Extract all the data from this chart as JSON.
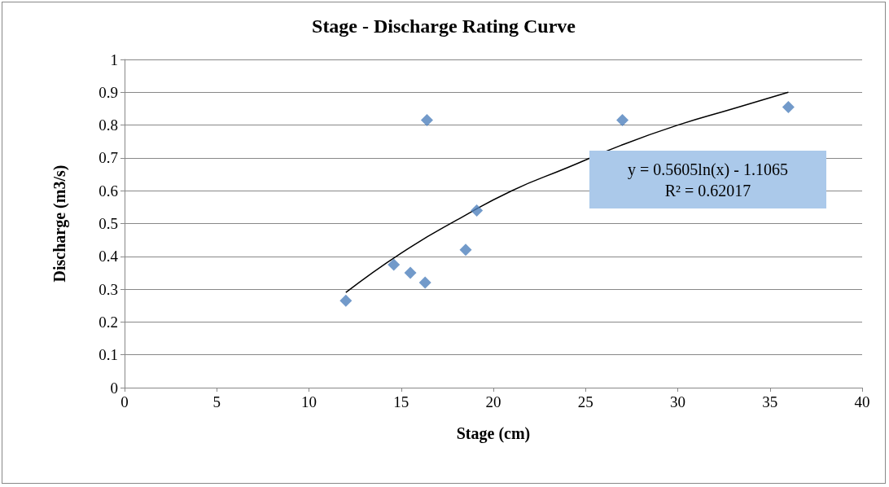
{
  "chart_data": {
    "type": "scatter",
    "title": "Stage - Discharge Rating Curve",
    "xlabel": "Stage (cm)",
    "ylabel": "Discharge (m3/s)",
    "series": [
      {
        "color": "#4f81bd",
        "marker": "diamond",
        "x": [
          12,
          14.6,
          15.5,
          16.3,
          16.4,
          18.5,
          19.1,
          27,
          36
        ],
        "values": [
          0.265,
          0.375,
          0.35,
          0.32,
          0.815,
          0.42,
          0.54,
          0.815,
          0.855
        ]
      },
      {
        "type": "line",
        "color": "#000000",
        "marker": "none",
        "line_style": "solid",
        "x": [
          12,
          15,
          18,
          21,
          24,
          27,
          30,
          33,
          36
        ],
        "values": [
          0.29,
          0.41,
          0.51,
          0.6,
          0.67,
          0.74,
          0.8,
          0.85,
          0.9
        ]
      }
    ],
    "annotations": [
      "y = 0.5605ln(x) - 1.1065",
      "R² = 0.62017"
    ],
    "xlim": [
      0,
      40
    ],
    "xticks": [
      0,
      5,
      10,
      15,
      20,
      25,
      30,
      35,
      40
    ],
    "ylim": [
      0,
      1
    ],
    "yticks": [
      0,
      0.1,
      0.2,
      0.3,
      0.4,
      0.5,
      0.6,
      0.7,
      0.8,
      0.9,
      1
    ],
    "grid": "y"
  }
}
